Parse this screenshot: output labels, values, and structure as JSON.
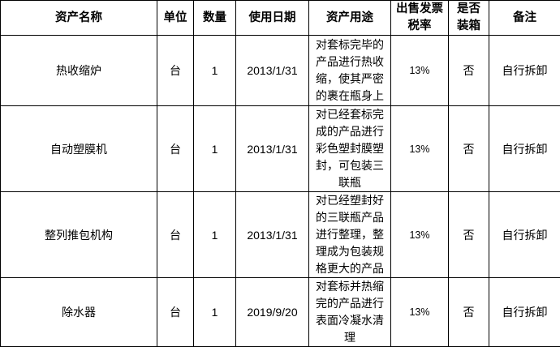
{
  "headers": [
    "资产名称",
    "单位",
    "数量",
    "使用日期",
    "资产用途",
    "出售发票税率",
    "是否装箱",
    "备注"
  ],
  "rows": [
    {
      "name": "热收缩炉",
      "unit": "台",
      "qty": "1",
      "date": "2013/1/31",
      "use": "对套标完毕的产品进行热收缩，使其严密的裹在瓶身上",
      "rate": "13%",
      "boxed": "否",
      "note": "自行拆卸"
    },
    {
      "name": "自动塑膜机",
      "unit": "台",
      "qty": "1",
      "date": "2013/1/31",
      "use": "对已经套标完成的产品进行彩色塑封膜塑封，可包装三联瓶",
      "rate": "13%",
      "boxed": "否",
      "note": "自行拆卸"
    },
    {
      "name": "整列推包机构",
      "unit": "台",
      "qty": "1",
      "date": "2013/1/31",
      "use": "对已经塑封好的三联瓶产品进行整理，整理成为包装规格更大的产品",
      "rate": "13%",
      "boxed": "否",
      "note": "自行拆卸"
    },
    {
      "name": "除水器",
      "unit": "台",
      "qty": "1",
      "date": "2019/9/20",
      "use": "对套标并热缩完的产品进行表面冷凝水清理",
      "rate": "13%",
      "boxed": "否",
      "note": "自行拆卸"
    }
  ]
}
